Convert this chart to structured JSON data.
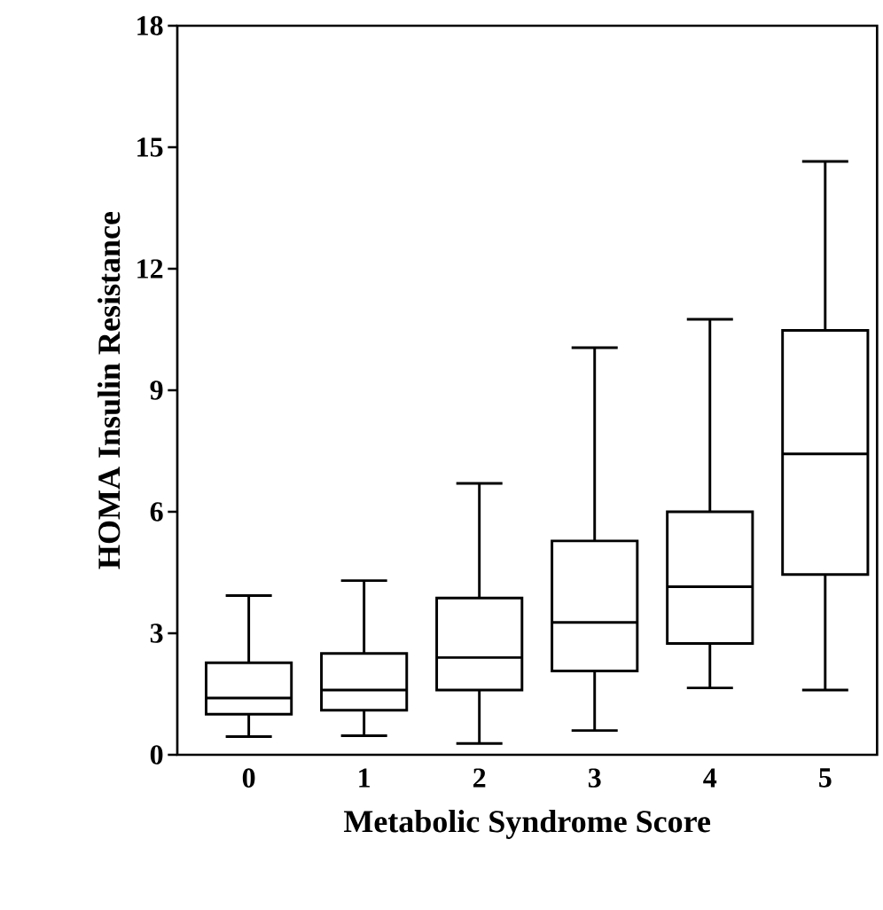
{
  "chart_data": {
    "type": "box",
    "xlabel": "Metabolic Syndrome Score",
    "ylabel": "HOMA Insulin Resistance",
    "categories": [
      "0",
      "1",
      "2",
      "3",
      "4",
      "5"
    ],
    "boxes": [
      {
        "low": 0.45,
        "q1": 1.0,
        "median": 1.4,
        "q3": 2.27,
        "high": 3.93
      },
      {
        "low": 0.47,
        "q1": 1.1,
        "median": 1.6,
        "q3": 2.5,
        "high": 4.3
      },
      {
        "low": 0.28,
        "q1": 1.6,
        "median": 2.4,
        "q3": 3.87,
        "high": 6.7
      },
      {
        "low": 0.6,
        "q1": 2.07,
        "median": 3.27,
        "q3": 5.28,
        "high": 10.05
      },
      {
        "low": 1.65,
        "q1": 2.75,
        "median": 4.15,
        "q3": 6.0,
        "high": 10.75
      },
      {
        "low": 1.6,
        "q1": 4.45,
        "median": 7.43,
        "q3": 10.48,
        "high": 14.65
      }
    ],
    "color": "#000000",
    "ylim": [
      0,
      18
    ],
    "yticks": [
      0,
      3,
      6,
      9,
      12,
      15,
      18
    ]
  }
}
